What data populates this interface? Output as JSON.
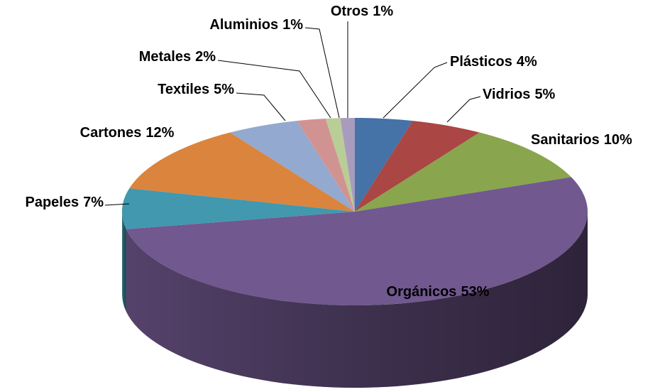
{
  "chart_data": {
    "type": "pie",
    "categories": [
      "Plásticos",
      "Vidrios",
      "Sanitarios",
      "Orgánicos",
      "Papeles",
      "Cartones",
      "Textiles",
      "Metales",
      "Aluminios",
      "Otros"
    ],
    "values": [
      4,
      5,
      10,
      53,
      7,
      12,
      5,
      2,
      1,
      1
    ],
    "value_labels": [
      "4%",
      "5%",
      "10%",
      "53%",
      "7%",
      "12%",
      "5%",
      "2%",
      "1%",
      "1%"
    ],
    "colors": [
      "#4572a7",
      "#aa4643",
      "#89a54e",
      "#71588f",
      "#4198af",
      "#db843d",
      "#93a9cf",
      "#d19392",
      "#b9cd96",
      "#a99bbd"
    ]
  }
}
